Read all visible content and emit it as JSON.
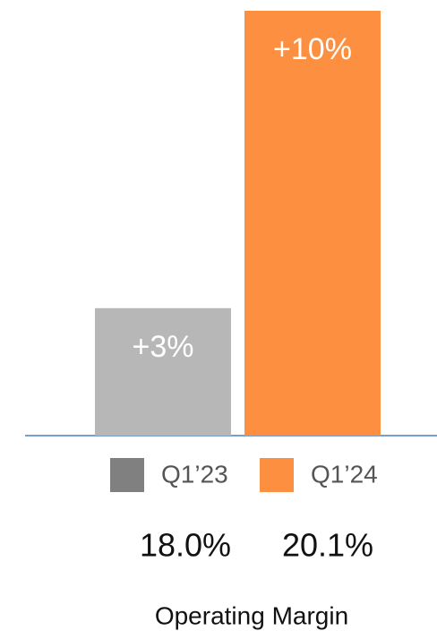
{
  "chart_data": {
    "type": "bar",
    "categories": [
      "Q1’23",
      "Q1’24"
    ],
    "values": [
      3,
      10
    ],
    "value_labels": [
      "+3%",
      "+10%"
    ],
    "colors": [
      "#b7b7b7",
      "#fd8f40"
    ],
    "legend_colors": [
      "#808080",
      "#fd8f40"
    ],
    "margins": [
      {
        "value": 18.0,
        "label": "18.0%"
      },
      {
        "value": 20.1,
        "label": "20.1%"
      }
    ],
    "x_label": "Operating Margin"
  }
}
